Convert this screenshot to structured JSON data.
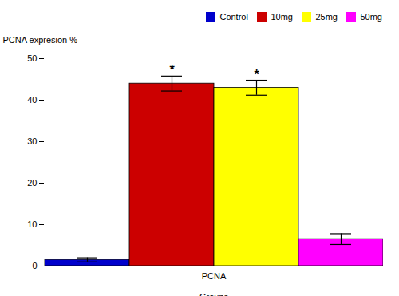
{
  "chart_data": {
    "type": "bar",
    "categories": [
      "PCNA"
    ],
    "series": [
      {
        "name": "Control",
        "color": "#0000CC",
        "values": [
          1.5
        ],
        "errors": [
          0.5
        ]
      },
      {
        "name": "10mg",
        "color": "#CC0000",
        "values": [
          44.0
        ],
        "errors": [
          1.8
        ]
      },
      {
        "name": "25mg",
        "color": "#FFFF00",
        "values": [
          43.0
        ],
        "errors": [
          1.8
        ]
      },
      {
        "name": "50mg",
        "color": "#FF00FF",
        "values": [
          6.5
        ],
        "errors": [
          1.3
        ]
      }
    ],
    "annotations": [
      {
        "series": "10mg",
        "category": "PCNA",
        "text": "*"
      },
      {
        "series": "25mg",
        "category": "PCNA",
        "text": "*"
      }
    ],
    "xlabel": "Groups",
    "ylabel": "PCNA expresion %",
    "ylim": [
      0,
      50
    ],
    "yticks": [
      0,
      10,
      20,
      30,
      40,
      50
    ],
    "grid": false,
    "legend": "upper right"
  }
}
